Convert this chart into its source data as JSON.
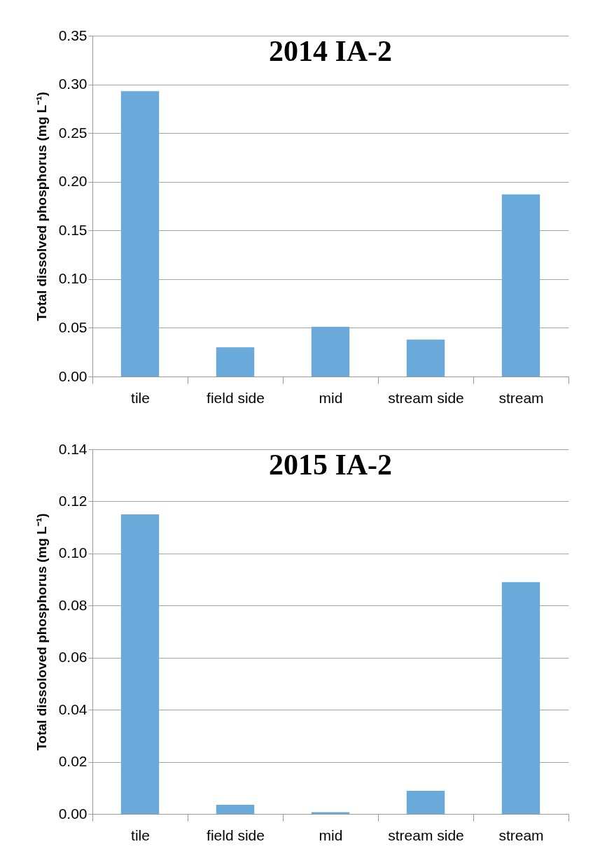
{
  "chart_data": [
    {
      "type": "bar",
      "title": "2014 IA-2",
      "ylabel": "Total dissolved phosphorus (mg L⁻¹)",
      "categories": [
        "tile",
        "field side",
        "mid",
        "stream side",
        "stream"
      ],
      "values": [
        0.293,
        0.03,
        0.051,
        0.038,
        0.187
      ],
      "color": "#6aaadb",
      "ylim": [
        0,
        0.35
      ],
      "yticks": [
        {
          "value": 0,
          "label": "0.00"
        },
        {
          "value": 0.05,
          "label": "0.05"
        },
        {
          "value": 0.1,
          "label": "0.10"
        },
        {
          "value": 0.15,
          "label": "0.15"
        },
        {
          "value": 0.2,
          "label": "0.20"
        },
        {
          "value": 0.25,
          "label": "0.25"
        },
        {
          "value": 0.3,
          "label": "0.30"
        },
        {
          "value": 0.35,
          "label": "0.35"
        }
      ],
      "grid": "y"
    },
    {
      "type": "bar",
      "title": "2015 IA-2",
      "ylabel": "Total dissoloved phosphorus (mg L⁻¹)",
      "categories": [
        "tile",
        "field side",
        "mid",
        "stream side",
        "stream"
      ],
      "values": [
        0.115,
        0.0035,
        0.0007,
        0.0089,
        0.089
      ],
      "color": "#6aaadb",
      "ylim": [
        0,
        0.14
      ],
      "yticks": [
        {
          "value": 0,
          "label": "0.00"
        },
        {
          "value": 0.02,
          "label": "0.02"
        },
        {
          "value": 0.04,
          "label": "0.04"
        },
        {
          "value": 0.06,
          "label": "0.06"
        },
        {
          "value": 0.08,
          "label": "0.08"
        },
        {
          "value": 0.1,
          "label": "0.10"
        },
        {
          "value": 0.12,
          "label": "0.12"
        },
        {
          "value": 0.14,
          "label": "0.14"
        }
      ],
      "grid": "y"
    }
  ]
}
